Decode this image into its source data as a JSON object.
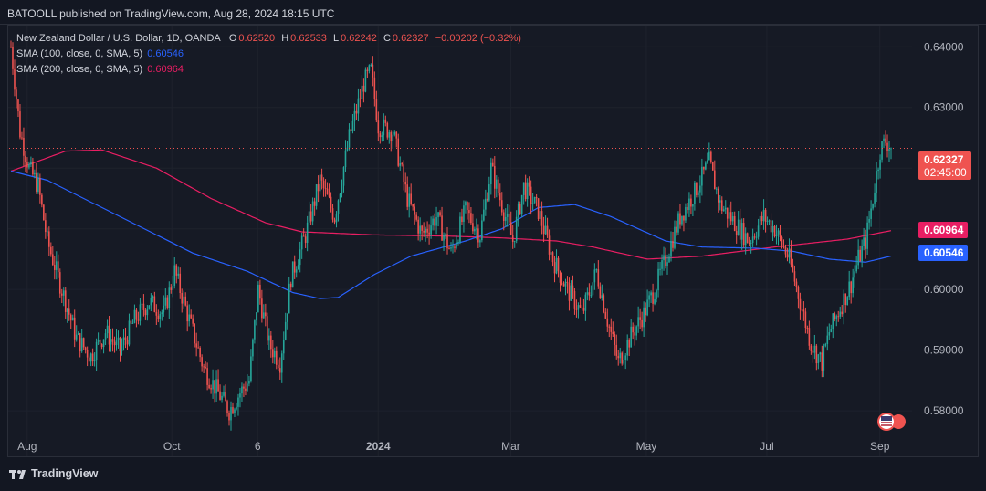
{
  "header": {
    "text": "BATOOLL published on TradingView.com, Aug 28, 2024 18:15 UTC"
  },
  "legend": {
    "symbol": "New Zealand Dollar / U.S. Dollar, 1D, OANDA",
    "o_label": "O",
    "o_value": "0.62520",
    "h_label": "H",
    "h_value": "0.62533",
    "l_label": "L",
    "l_value": "0.62242",
    "c_label": "C",
    "c_value": "0.62327",
    "change": "−0.00202 (−0.32%)",
    "sma100_label": "SMA (100, close, 0, SMA, 5)",
    "sma100_value": "0.60546",
    "sma200_label": "SMA (200, close, 0, SMA, 5)",
    "sma200_value": "0.60964"
  },
  "badges": {
    "price": "0.62327",
    "countdown": "02:45:00",
    "sma200": "0.60964",
    "sma100": "0.60546"
  },
  "footer": {
    "brand": "TradingView"
  },
  "colors": {
    "up": "#26a69a",
    "down": "#ef5350",
    "sma100": "#2962ff",
    "sma200": "#e91e63",
    "price_line": "#ef5350"
  },
  "chart_data": {
    "type": "candlestick",
    "title": "New Zealand Dollar / U.S. Dollar, 1D, OANDA",
    "ylim": [
      0.5725,
      0.6435
    ],
    "y_ticks": [
      "0.64000",
      "0.63000",
      "0.62000",
      "0.61000",
      "0.60000",
      "0.59000",
      "0.58000"
    ],
    "x_ticks": [
      "Aug",
      "Oct",
      "6",
      "2024",
      "Mar",
      "May",
      "Jul",
      "Sep"
    ],
    "last_price": 0.62327,
    "anchors": [
      [
        0,
        0.64
      ],
      [
        5,
        0.626
      ],
      [
        10,
        0.62
      ],
      [
        15,
        0.617
      ],
      [
        20,
        0.608
      ],
      [
        28,
        0.6
      ],
      [
        36,
        0.592
      ],
      [
        44,
        0.589
      ],
      [
        52,
        0.593
      ],
      [
        60,
        0.59
      ],
      [
        68,
        0.595
      ],
      [
        76,
        0.598
      ],
      [
        84,
        0.596
      ],
      [
        90,
        0.603
      ],
      [
        98,
        0.595
      ],
      [
        106,
        0.587
      ],
      [
        114,
        0.583
      ],
      [
        120,
        0.58
      ],
      [
        126,
        0.583
      ],
      [
        131,
        0.585
      ],
      [
        136,
        0.6
      ],
      [
        142,
        0.591
      ],
      [
        148,
        0.588
      ],
      [
        154,
        0.602
      ],
      [
        162,
        0.609
      ],
      [
        170,
        0.618
      ],
      [
        178,
        0.612
      ],
      [
        186,
        0.625
      ],
      [
        194,
        0.634
      ],
      [
        198,
        0.636
      ],
      [
        202,
        0.627
      ],
      [
        210,
        0.626
      ],
      [
        218,
        0.615
      ],
      [
        226,
        0.609
      ],
      [
        234,
        0.612
      ],
      [
        242,
        0.606
      ],
      [
        250,
        0.613
      ],
      [
        258,
        0.609
      ],
      [
        264,
        0.62
      ],
      [
        270,
        0.614
      ],
      [
        276,
        0.608
      ],
      [
        282,
        0.617
      ],
      [
        290,
        0.613
      ],
      [
        298,
        0.605
      ],
      [
        306,
        0.6
      ],
      [
        314,
        0.596
      ],
      [
        322,
        0.603
      ],
      [
        328,
        0.595
      ],
      [
        334,
        0.588
      ],
      [
        342,
        0.593
      ],
      [
        348,
        0.596
      ],
      [
        354,
        0.6
      ],
      [
        360,
        0.605
      ],
      [
        368,
        0.612
      ],
      [
        376,
        0.616
      ],
      [
        384,
        0.621
      ],
      [
        390,
        0.614
      ],
      [
        398,
        0.611
      ],
      [
        406,
        0.608
      ],
      [
        414,
        0.612
      ],
      [
        420,
        0.61
      ],
      [
        428,
        0.605
      ],
      [
        434,
        0.598
      ],
      [
        440,
        0.591
      ],
      [
        446,
        0.588
      ],
      [
        450,
        0.593
      ],
      [
        456,
        0.597
      ],
      [
        462,
        0.601
      ],
      [
        466,
        0.605
      ],
      [
        470,
        0.608
      ],
      [
        474,
        0.615
      ],
      [
        478,
        0.623
      ],
      [
        481,
        0.6245
      ],
      [
        484,
        0.6233
      ]
    ],
    "sma100": [
      [
        0,
        0.6195
      ],
      [
        20,
        0.618
      ],
      [
        60,
        0.612
      ],
      [
        100,
        0.606
      ],
      [
        130,
        0.603
      ],
      [
        155,
        0.5995
      ],
      [
        170,
        0.5985
      ],
      [
        180,
        0.5987
      ],
      [
        200,
        0.6025
      ],
      [
        220,
        0.6055
      ],
      [
        250,
        0.608
      ],
      [
        270,
        0.61
      ],
      [
        290,
        0.6135
      ],
      [
        310,
        0.614
      ],
      [
        330,
        0.612
      ],
      [
        360,
        0.608
      ],
      [
        380,
        0.607
      ],
      [
        410,
        0.6068
      ],
      [
        430,
        0.6063
      ],
      [
        450,
        0.605
      ],
      [
        470,
        0.6045
      ],
      [
        484,
        0.6055
      ]
    ],
    "sma200": [
      [
        0,
        0.6195
      ],
      [
        30,
        0.6228
      ],
      [
        50,
        0.623
      ],
      [
        80,
        0.62
      ],
      [
        110,
        0.615
      ],
      [
        140,
        0.611
      ],
      [
        160,
        0.6095
      ],
      [
        200,
        0.609
      ],
      [
        240,
        0.6088
      ],
      [
        270,
        0.6085
      ],
      [
        300,
        0.608
      ],
      [
        320,
        0.607
      ],
      [
        350,
        0.605
      ],
      [
        380,
        0.6055
      ],
      [
        420,
        0.607
      ],
      [
        460,
        0.6083
      ],
      [
        484,
        0.6097
      ]
    ],
    "n_candles": 485
  }
}
